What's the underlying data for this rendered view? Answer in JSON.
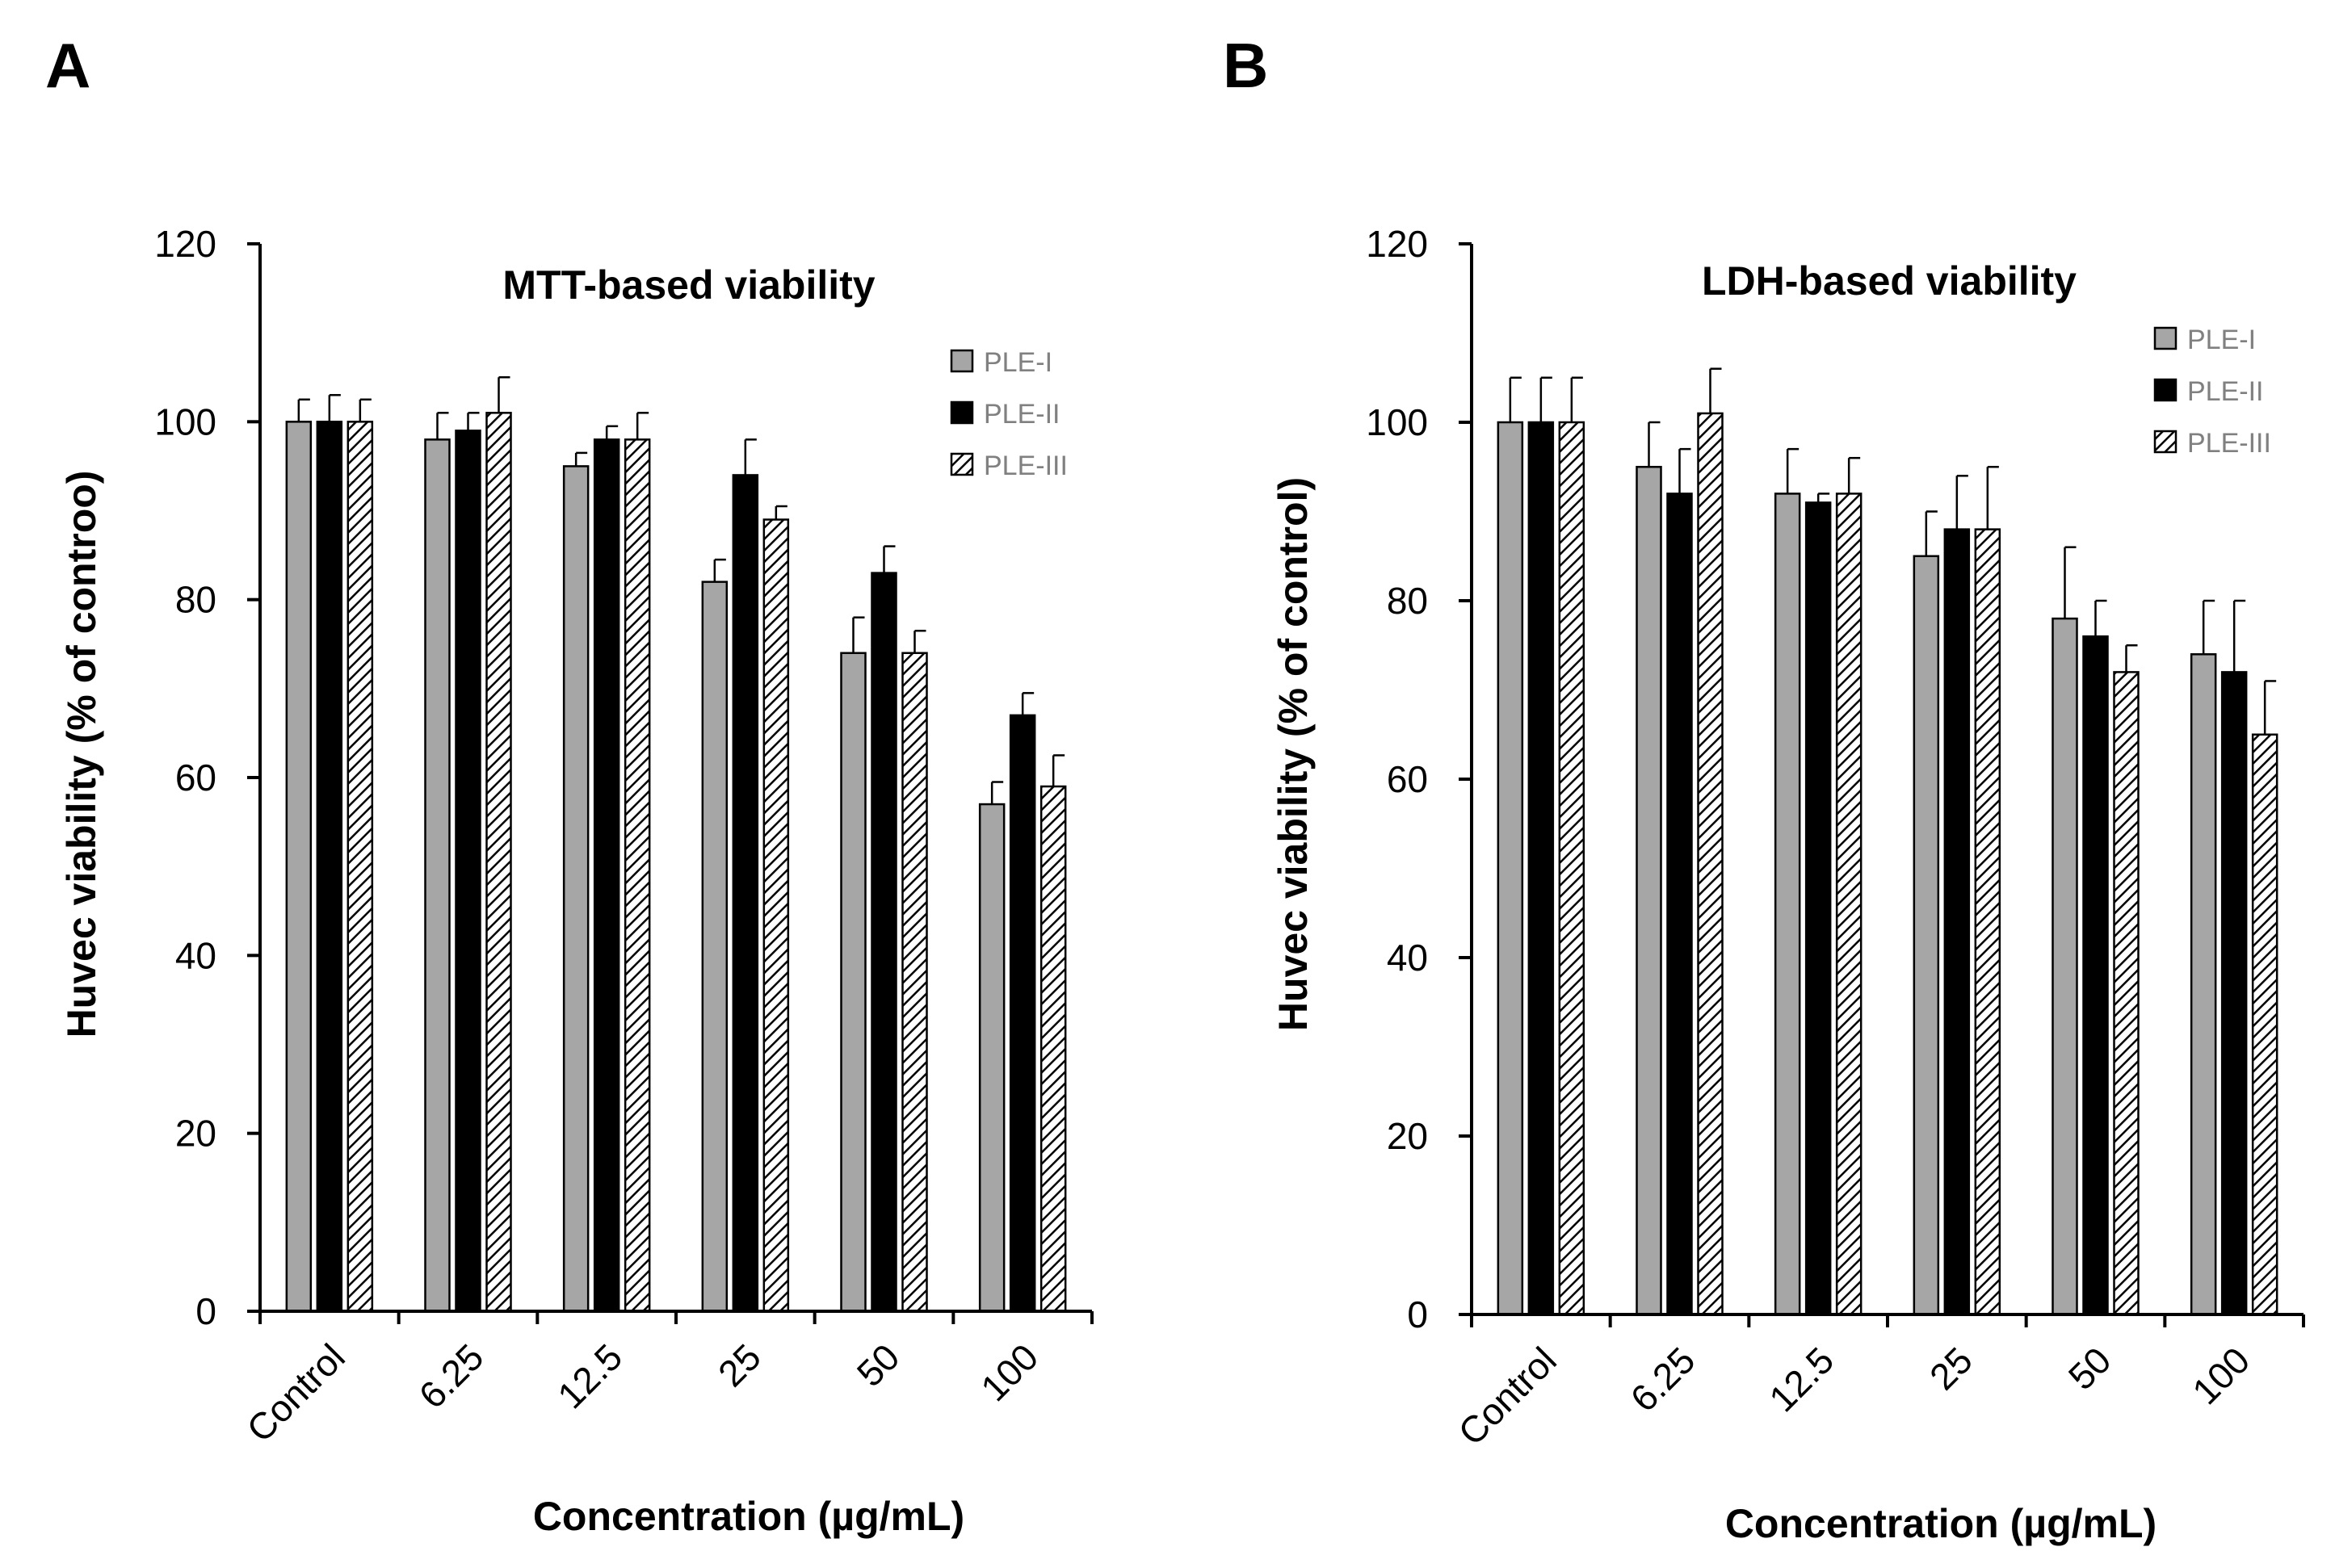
{
  "series_styles": [
    {
      "name": "PLE-I",
      "fill": "#a6a6a6",
      "pattern": "solid"
    },
    {
      "name": "PLE-II",
      "fill": "#000000",
      "pattern": "solid"
    },
    {
      "name": "PLE-III",
      "fill": "#ffffff",
      "pattern": "diagonal-hatch"
    }
  ],
  "chart_data": [
    {
      "panel": "A",
      "type": "bar",
      "title": "MTT-based viability",
      "xlabel": "Concentration (µg/mL)",
      "ylabel": "Huvec viability (% of controo)",
      "ylim": [
        0,
        120
      ],
      "yticks": [
        0,
        20,
        40,
        60,
        80,
        100,
        120
      ],
      "categories": [
        "Control",
        "6.25",
        "12.5",
        "25",
        "50",
        "100"
      ],
      "legend_position": "top-right",
      "series": [
        {
          "name": "PLE-I",
          "values": [
            100,
            98,
            95,
            82,
            74,
            57
          ],
          "errors": [
            2.5,
            3,
            1.5,
            2.5,
            4,
            2.5
          ]
        },
        {
          "name": "PLE-II",
          "values": [
            100,
            99,
            98,
            94,
            83,
            67
          ],
          "errors": [
            3,
            2,
            1.5,
            4,
            3,
            2.5
          ]
        },
        {
          "name": "PLE-III",
          "values": [
            100,
            101,
            98,
            89,
            74,
            59
          ],
          "errors": [
            2.5,
            4,
            3,
            1.5,
            2.5,
            3.5
          ]
        }
      ]
    },
    {
      "panel": "B",
      "type": "bar",
      "title": "LDH-based viability",
      "xlabel": "Concentration (µg/mL)",
      "ylabel": "Huvec viability (% of control)",
      "ylim": [
        0,
        120
      ],
      "yticks": [
        0,
        20,
        40,
        60,
        80,
        100,
        120
      ],
      "categories": [
        "Control",
        "6.25",
        "12.5",
        "25",
        "50",
        "100"
      ],
      "legend_position": "top-right",
      "series": [
        {
          "name": "PLE-I",
          "values": [
            100,
            95,
            92,
            85,
            78,
            74
          ],
          "errors": [
            5,
            5,
            5,
            5,
            8,
            6
          ]
        },
        {
          "name": "PLE-II",
          "values": [
            100,
            92,
            91,
            88,
            76,
            72
          ],
          "errors": [
            5,
            5,
            1,
            6,
            4,
            8
          ]
        },
        {
          "name": "PLE-III",
          "values": [
            100,
            101,
            92,
            88,
            72,
            65
          ],
          "errors": [
            5,
            5,
            4,
            7,
            3,
            6
          ]
        }
      ]
    }
  ]
}
